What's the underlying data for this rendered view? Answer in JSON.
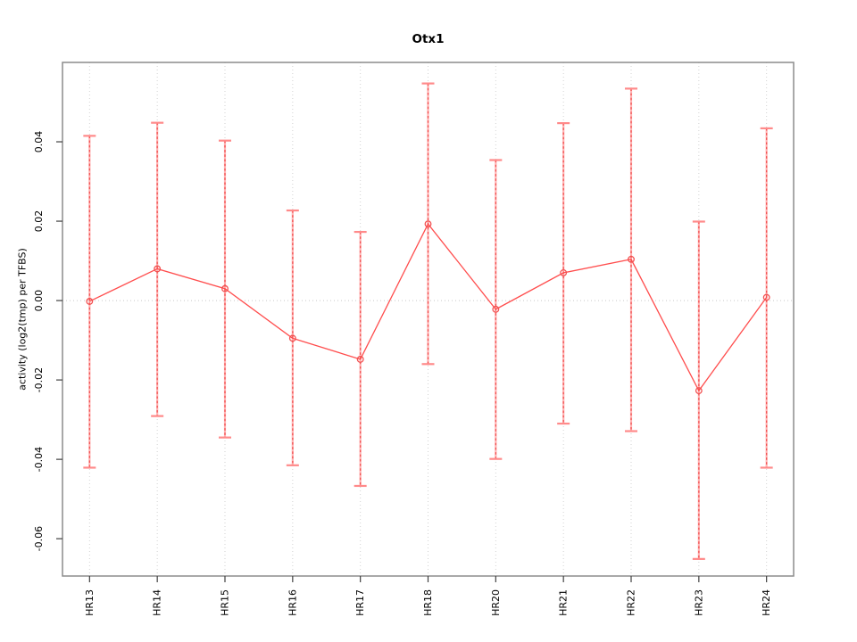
{
  "figure": {
    "title": "Otx1",
    "y_axis_label": "activity (log2(tmp) per TFBS)"
  },
  "chart_data": {
    "type": "line",
    "title": "Otx1",
    "xlabel": "",
    "ylabel": "activity (log2(tmp) per TFBS)",
    "categories": [
      "HR13",
      "HR14",
      "HR15",
      "HR16",
      "HR17",
      "HR18",
      "HR20",
      "HR21",
      "HR22",
      "HR23",
      "HR24"
    ],
    "series": [
      {
        "name": "activity",
        "values": [
          -0.0002,
          0.008,
          0.003,
          -0.0095,
          -0.0148,
          0.0193,
          -0.0022,
          0.007,
          0.0104,
          -0.0227,
          0.0008
        ]
      },
      {
        "name": "upper_error",
        "values": [
          0.0415,
          0.0448,
          0.0403,
          0.0227,
          0.0173,
          0.0547,
          0.0354,
          0.0447,
          0.0534,
          0.0199,
          0.0434
        ]
      },
      {
        "name": "lower_error",
        "values": [
          -0.0421,
          -0.0291,
          -0.0345,
          -0.0415,
          -0.0467,
          -0.016,
          -0.0399,
          -0.031,
          -0.0329,
          -0.0651,
          -0.0421
        ]
      }
    ],
    "ylim": [
      -0.0694,
      0.06
    ],
    "yticks": [
      0.04,
      0.02,
      0.0,
      -0.02,
      -0.04,
      -0.06
    ],
    "ytick_labels": [
      "0.04",
      "0.02",
      "0.00",
      "-0.02",
      "-0.04",
      "-0.06"
    ],
    "grid": "dotted vertical gridline at each category; dotted horizontal line at y=0",
    "legend": "none",
    "marker": "open-circle",
    "colors": {
      "line": "#ff4d4d",
      "marker_stroke": "#f25252",
      "error_bar_base": "#ffb3b3",
      "error_bar_dash": "#f25252",
      "error_cap": "#ff8a8a",
      "gridline": "#d2d2d2",
      "zero_line": "#c8c8c8",
      "box_border": "#8c8c8c",
      "tick": "#404040",
      "text": "#000000"
    }
  }
}
